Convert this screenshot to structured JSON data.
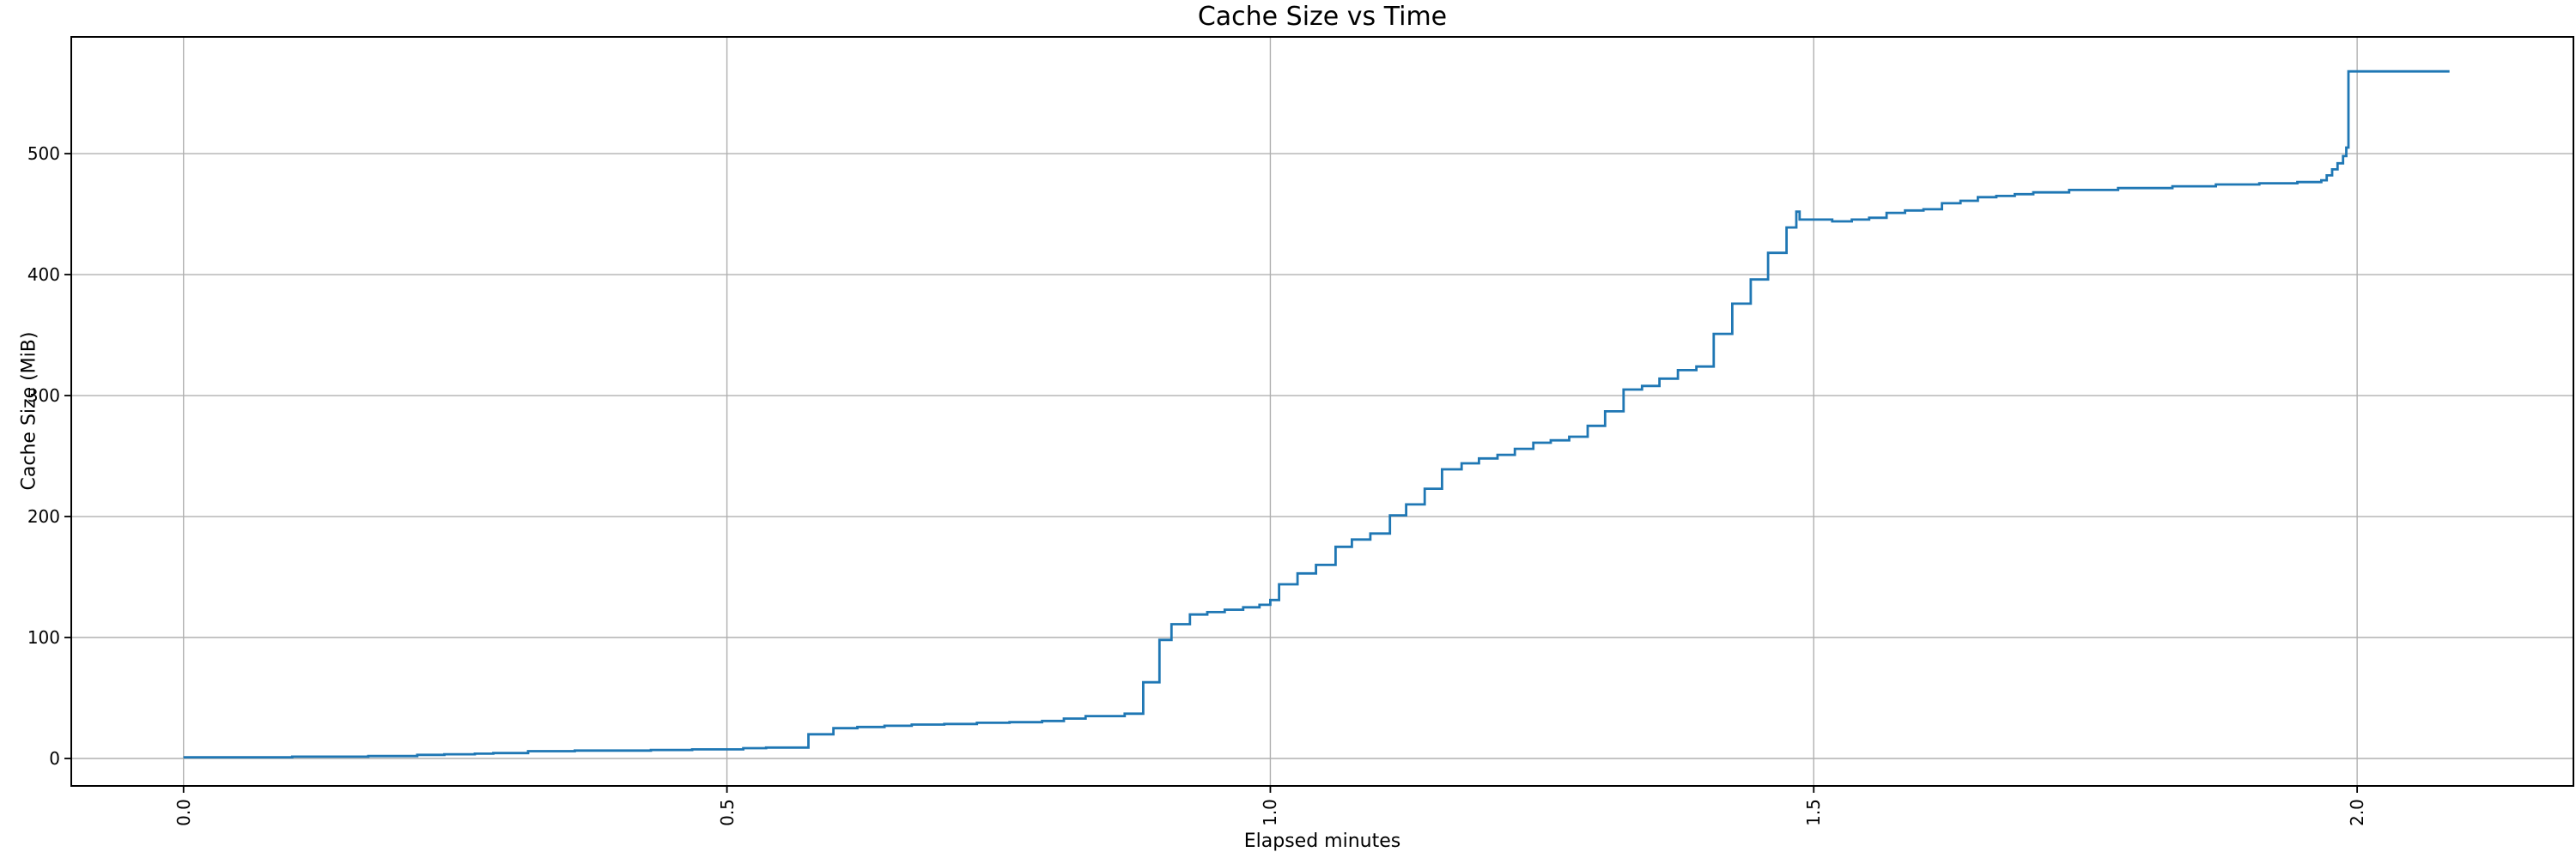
{
  "chart_data": {
    "type": "line",
    "title": "Cache Size vs Time",
    "xlabel": "Elapsed minutes",
    "ylabel": "Cache Size (MiB)",
    "x_tick_values": [
      0.0,
      0.5,
      1.0,
      1.5,
      2.0
    ],
    "x_tick_labels": [
      "0.0",
      "0.5",
      "1.0",
      "1.5",
      "2.0"
    ],
    "x_tick_rotation_deg": 90,
    "y_tick_values": [
      0,
      100,
      200,
      300,
      400,
      500
    ],
    "y_tick_labels": [
      "0",
      "100",
      "200",
      "300",
      "400",
      "500"
    ],
    "xlim": [
      -0.1033,
      2.199
    ],
    "ylim": [
      -22.7,
      596.5
    ],
    "grid": true,
    "legend": null,
    "line_color": "#1f77b4",
    "grid_color": "#b0b0b0",
    "spine_color": "#000000",
    "background_color": "#ffffff",
    "drawstyle": "steps-post",
    "series": [
      {
        "name": "cache_size_mib",
        "points": [
          [
            0.0,
            1
          ],
          [
            0.1,
            1.5
          ],
          [
            0.17,
            2
          ],
          [
            0.215,
            3
          ],
          [
            0.24,
            3.5
          ],
          [
            0.268,
            4
          ],
          [
            0.285,
            4.5
          ],
          [
            0.317,
            6
          ],
          [
            0.36,
            6.5
          ],
          [
            0.43,
            7
          ],
          [
            0.468,
            7.5
          ],
          [
            0.515,
            8.5
          ],
          [
            0.536,
            9
          ],
          [
            0.575,
            20
          ],
          [
            0.598,
            25
          ],
          [
            0.62,
            26
          ],
          [
            0.645,
            27
          ],
          [
            0.67,
            28
          ],
          [
            0.7,
            28.5
          ],
          [
            0.73,
            29.5
          ],
          [
            0.76,
            30
          ],
          [
            0.79,
            31
          ],
          [
            0.81,
            33
          ],
          [
            0.83,
            35
          ],
          [
            0.866,
            37
          ],
          [
            0.883,
            63
          ],
          [
            0.898,
            98
          ],
          [
            0.909,
            111
          ],
          [
            0.926,
            119
          ],
          [
            0.942,
            121
          ],
          [
            0.958,
            123
          ],
          [
            0.975,
            125
          ],
          [
            0.99,
            127
          ],
          [
            1.0,
            131
          ],
          [
            1.008,
            144
          ],
          [
            1.025,
            153
          ],
          [
            1.042,
            160
          ],
          [
            1.06,
            175
          ],
          [
            1.075,
            181
          ],
          [
            1.092,
            186
          ],
          [
            1.11,
            201
          ],
          [
            1.125,
            210
          ],
          [
            1.142,
            223
          ],
          [
            1.158,
            239
          ],
          [
            1.176,
            244
          ],
          [
            1.192,
            248
          ],
          [
            1.209,
            251
          ],
          [
            1.225,
            256
          ],
          [
            1.242,
            261
          ],
          [
            1.258,
            263
          ],
          [
            1.275,
            266
          ],
          [
            1.292,
            275
          ],
          [
            1.308,
            287
          ],
          [
            1.325,
            305
          ],
          [
            1.342,
            308
          ],
          [
            1.358,
            314
          ],
          [
            1.375,
            321
          ],
          [
            1.392,
            324
          ],
          [
            1.408,
            351
          ],
          [
            1.425,
            376
          ],
          [
            1.442,
            396
          ],
          [
            1.458,
            418
          ],
          [
            1.475,
            439
          ],
          [
            1.484,
            452
          ],
          [
            1.487,
            445.5
          ],
          [
            1.517,
            444
          ],
          [
            1.535,
            445.5
          ],
          [
            1.551,
            447
          ],
          [
            1.567,
            451
          ],
          [
            1.584,
            453
          ],
          [
            1.601,
            454
          ],
          [
            1.618,
            459
          ],
          [
            1.635,
            461
          ],
          [
            1.651,
            464
          ],
          [
            1.668,
            465
          ],
          [
            1.685,
            466.5
          ],
          [
            1.702,
            468
          ],
          [
            1.735,
            470
          ],
          [
            1.78,
            471.5
          ],
          [
            1.83,
            473
          ],
          [
            1.87,
            474.5
          ],
          [
            1.91,
            475.5
          ],
          [
            1.945,
            476.5
          ],
          [
            1.967,
            478
          ],
          [
            1.972,
            482
          ],
          [
            1.977,
            487
          ],
          [
            1.982,
            492
          ],
          [
            1.987,
            498
          ],
          [
            1.99,
            505
          ],
          [
            1.992,
            568
          ],
          [
            2.085,
            568
          ]
        ]
      }
    ]
  }
}
